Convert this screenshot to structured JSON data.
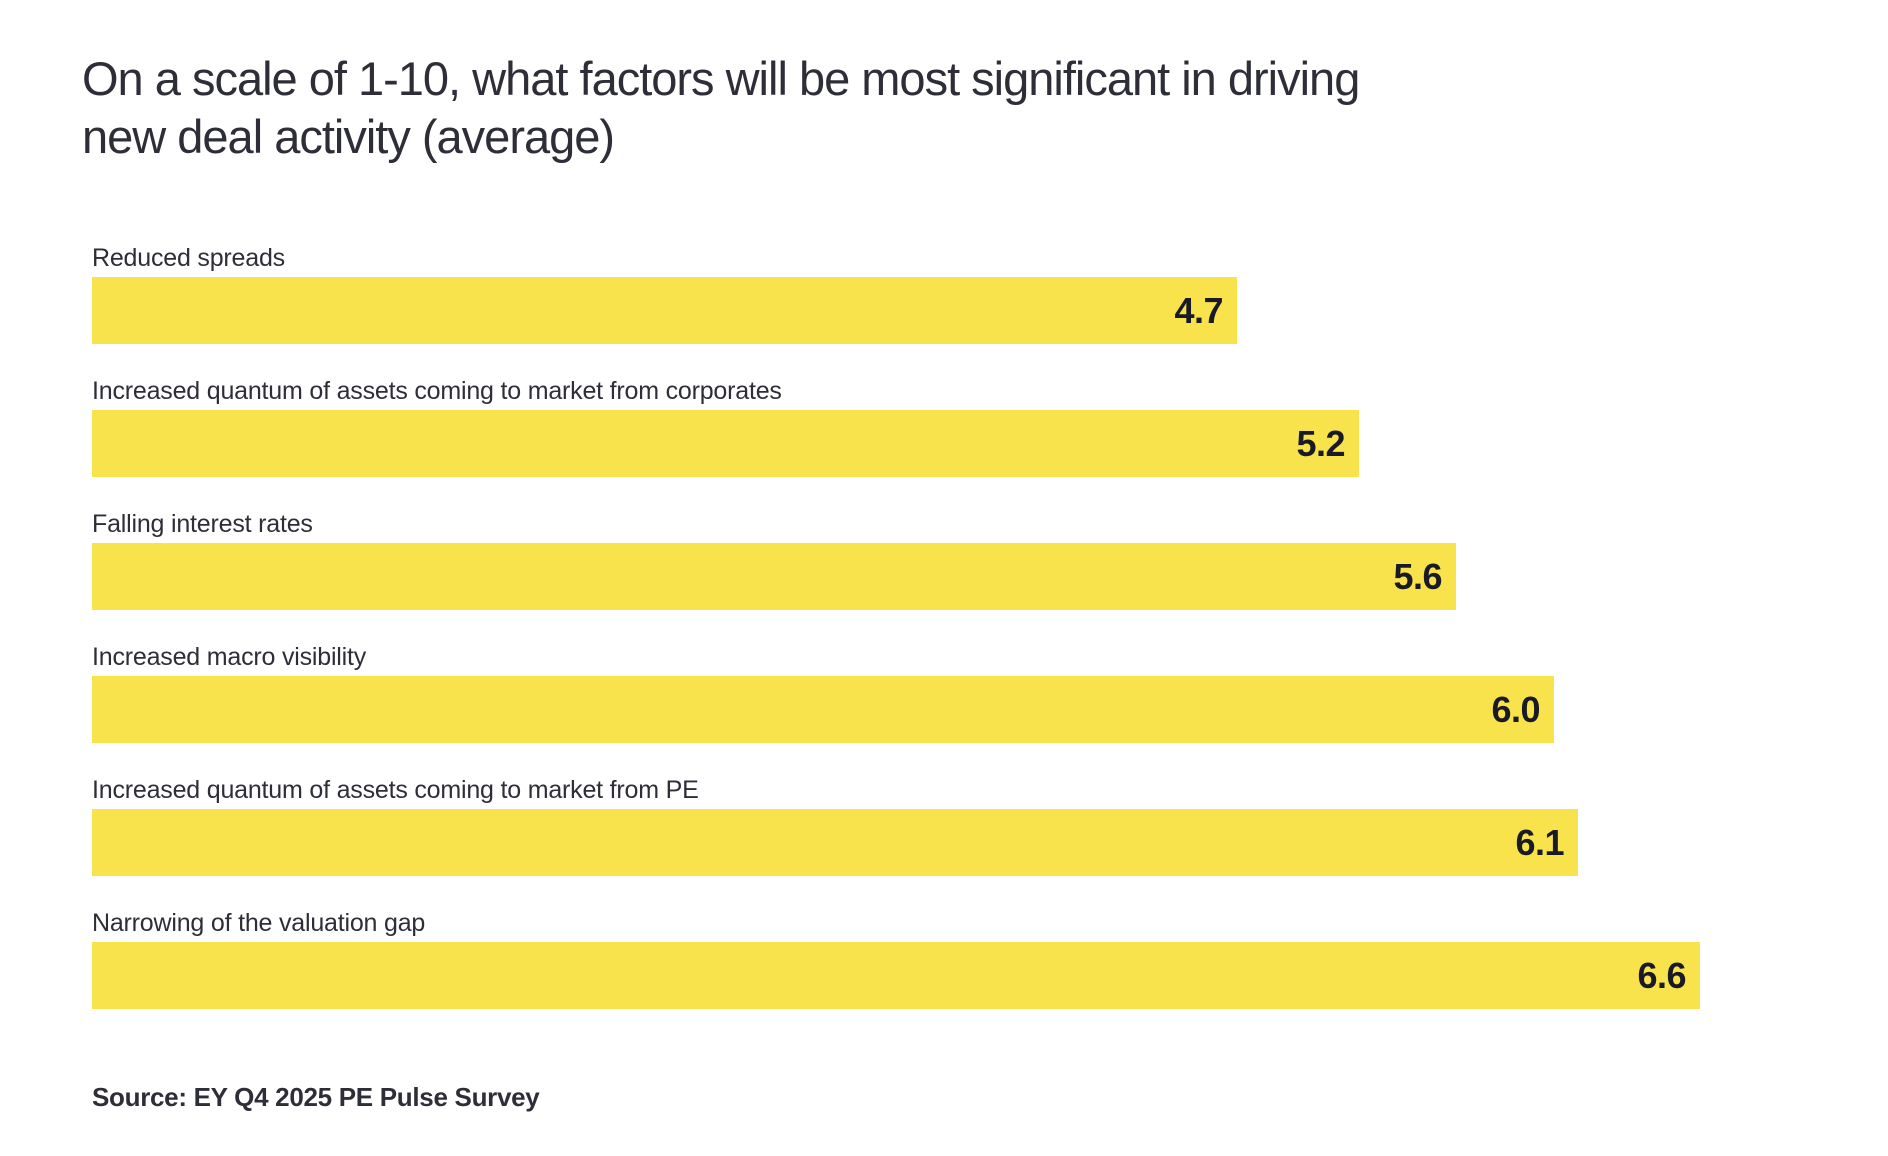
{
  "header": {
    "title_lines": [
      "On a scale of 1-10, what factors will be most significant in driving",
      "new deal activity (average)"
    ]
  },
  "footer": {
    "source": "Source: EY Q4 2025 PE Pulse Survey"
  },
  "chart_data": {
    "type": "bar",
    "orientation": "horizontal",
    "title": "On a scale of 1-10, what factors will be most significant in driving new deal activity (average)",
    "categories": [
      "Reduced spreads",
      "Increased quantum of assets coming to market from corporates",
      "Falling interest rates",
      "Increased macro visibility",
      "Increased quantum of assets coming to market from PE",
      "Narrowing of the valuation gap"
    ],
    "values": [
      4.7,
      5.2,
      5.6,
      6.0,
      6.1,
      6.6
    ],
    "value_labels": [
      "4.7",
      "5.2",
      "5.6",
      "6.0",
      "6.1",
      "6.6"
    ],
    "xlim": [
      0,
      10
    ],
    "grid": false,
    "legend": null,
    "value_label_position": "inside-end",
    "bar_color": "#f9e34d",
    "value_color": "#1a1a24",
    "label_color": "#2e2e38",
    "source": "Source: EY Q4 2025 PE Pulse Survey"
  }
}
